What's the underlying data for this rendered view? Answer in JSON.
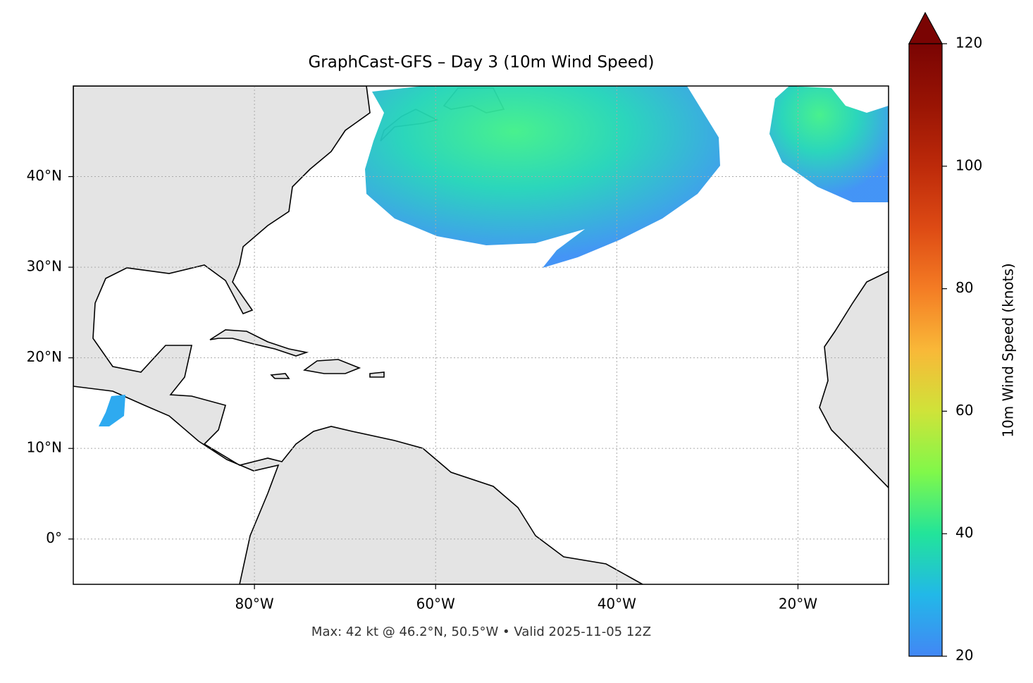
{
  "chart_data": {
    "type": "map",
    "title": "GraphCast-GFS – Day 3 (10m Wind Speed)",
    "subtitle": "Max: 42 kt @ 46.2°N, 50.5°W • Valid 2025-11-05 12Z",
    "xlim": [
      -100,
      -10
    ],
    "ylim": [
      -5,
      50
    ],
    "xticks": [
      {
        "value": -80,
        "label": "80°W"
      },
      {
        "value": -60,
        "label": "60°W"
      },
      {
        "value": -40,
        "label": "40°W"
      },
      {
        "value": -20,
        "label": "20°W"
      }
    ],
    "yticks": [
      {
        "value": 0,
        "label": "0°"
      },
      {
        "value": 10,
        "label": "10°N"
      },
      {
        "value": 20,
        "label": "20°N"
      },
      {
        "value": 30,
        "label": "30°N"
      },
      {
        "value": 40,
        "label": "40°N"
      }
    ],
    "grid": true,
    "colorbar": {
      "label": "10m Wind Speed (knots)",
      "lim": [
        20,
        120
      ],
      "ticks": [
        20,
        40,
        60,
        80,
        100,
        120
      ]
    }
  }
}
